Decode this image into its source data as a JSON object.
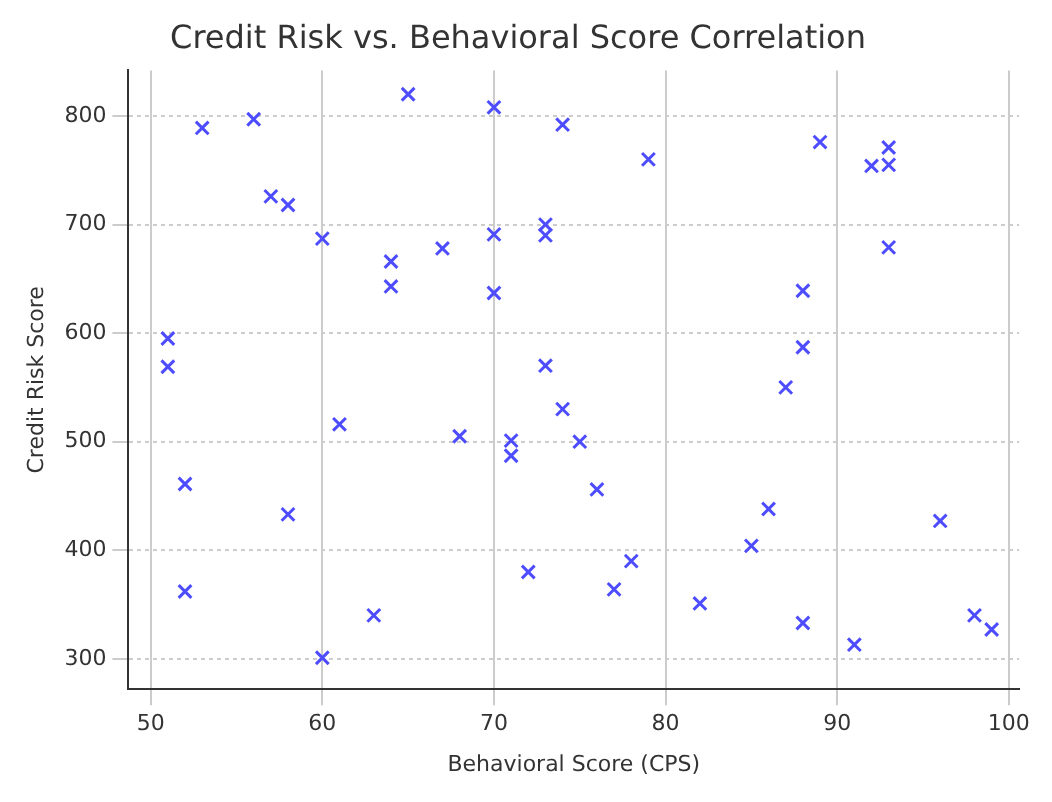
{
  "chart_data": {
    "type": "scatter",
    "title": "Credit Risk vs. Behavioral Score Correlation",
    "xlabel": "Behavioral Score (CPS)",
    "ylabel": "Credit Risk Score",
    "x": [
      51,
      51,
      52,
      52,
      53,
      56,
      57,
      58,
      58,
      60,
      60,
      61,
      63,
      64,
      64,
      65,
      67,
      68,
      70,
      70,
      70,
      71,
      71,
      72,
      73,
      73,
      73,
      74,
      74,
      75,
      76,
      77,
      78,
      79,
      82,
      85,
      86,
      87,
      88,
      88,
      88,
      89,
      91,
      92,
      93,
      93,
      93,
      96,
      98,
      99
    ],
    "series": [
      {
        "color": "#4d4dff",
        "values": [
          595,
          569,
          461,
          362,
          789,
          797,
          726,
          718,
          433,
          687,
          301,
          516,
          340,
          666,
          643,
          820,
          678,
          505,
          808,
          691,
          637,
          501,
          487,
          380,
          700,
          690,
          570,
          792,
          530,
          500,
          456,
          364,
          390,
          760,
          351,
          404,
          438,
          550,
          639,
          587,
          333,
          776,
          313,
          754,
          771,
          755,
          679,
          427,
          340,
          327
        ]
      }
    ],
    "xlim": [
      48.7,
      100.6
    ],
    "ylim": [
      272,
      842
    ],
    "xticks": [
      50,
      60,
      70,
      80,
      90,
      100
    ],
    "yticks": [
      300,
      400,
      500,
      600,
      700,
      800
    ],
    "grid": true,
    "marker": "cross",
    "legend": false
  }
}
